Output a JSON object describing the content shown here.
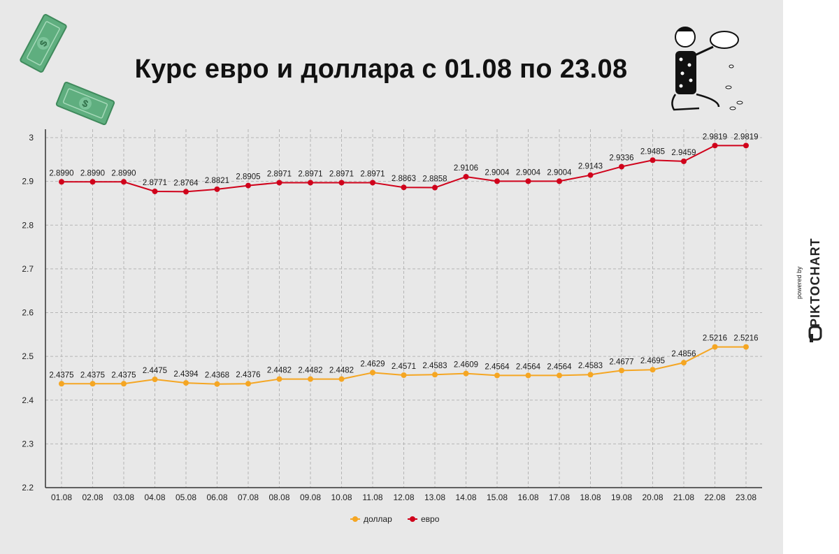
{
  "title": "Курс евро и доллара с 01.08 по 23.08",
  "chart_data": {
    "type": "line",
    "title": "Курс евро и доллара с 01.08 по 23.08",
    "xlabel": "",
    "ylabel": "",
    "ylim": [
      2.2,
      3.0
    ],
    "yticks": [
      2.2,
      2.3,
      2.4,
      2.5,
      2.6,
      2.7,
      2.8,
      2.9,
      3
    ],
    "ytick_labels": [
      "2.2",
      "2.3",
      "2.4",
      "2.5",
      "2.6",
      "2.7",
      "2.8",
      "2.9",
      "3"
    ],
    "grid": true,
    "legend_position": "bottom-center",
    "categories": [
      "01.08",
      "02.08",
      "03.08",
      "04.08",
      "05.08",
      "06.08",
      "07.08",
      "08.08",
      "09.08",
      "10.08",
      "11.08",
      "12.08",
      "13.08",
      "14.08",
      "15.08",
      "16.08",
      "17.08",
      "18.08",
      "19.08",
      "20.08",
      "21.08",
      "22.08",
      "23.08"
    ],
    "series": [
      {
        "name": "доллар",
        "color": "#f5a623",
        "values": [
          2.4375,
          2.4375,
          2.4375,
          2.4475,
          2.4394,
          2.4368,
          2.4376,
          2.4482,
          2.4482,
          2.4482,
          2.4629,
          2.4571,
          2.4583,
          2.4609,
          2.4564,
          2.4564,
          2.4564,
          2.4583,
          2.4677,
          2.4695,
          2.4856,
          2.5216,
          2.5216
        ],
        "labels": [
          "2.4375",
          "2.4375",
          "2.4375",
          "2.4475",
          "2.4394",
          "2.4368",
          "2.4376",
          "2.4482",
          "2.4482",
          "2.4482",
          "2.4629",
          "2.4571",
          "2.4583",
          "2.4609",
          "2.4564",
          "2.4564",
          "2.4564",
          "2.4583",
          "2.4677",
          "2.4695",
          "2.4856",
          "2.5216",
          "2.5216"
        ]
      },
      {
        "name": "евро",
        "color": "#d0021b",
        "values": [
          2.899,
          2.899,
          2.899,
          2.8771,
          2.8764,
          2.8821,
          2.8905,
          2.8971,
          2.8971,
          2.8971,
          2.8971,
          2.8863,
          2.8858,
          2.9106,
          2.9004,
          2.9004,
          2.9004,
          2.9143,
          2.9336,
          2.9485,
          2.9459,
          2.9819,
          2.9819
        ],
        "labels": [
          "2.8990",
          "2.8990",
          "2.8990",
          "2.8771",
          "2.8764",
          "2.8821",
          "2.8905",
          "2.8971",
          "2.8971",
          "2.8971",
          "2.8971",
          "2.8863",
          "2.8858",
          "2.9106",
          "2.9004",
          "2.9004",
          "2.9004",
          "2.9143",
          "2.9336",
          "2.9485",
          "2.9459",
          "2.9819",
          "2.9819"
        ]
      }
    ]
  },
  "decorations": {
    "money_icon": "dollar-bill-icon",
    "illustration": "man-with-piggy-bank-icon"
  },
  "branding": {
    "powered_by": "powered by",
    "brand_name": "PIKTOCHART"
  }
}
